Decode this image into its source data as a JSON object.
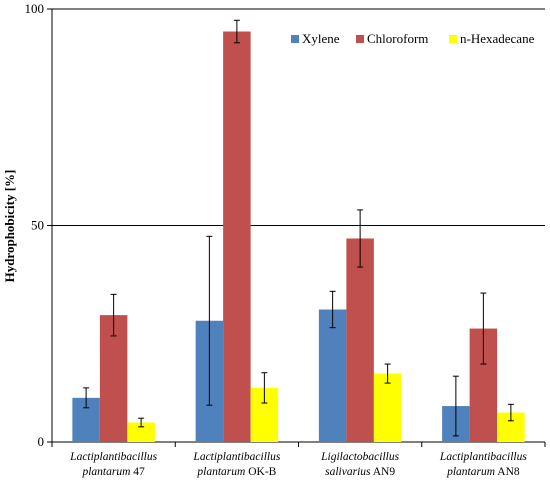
{
  "chart_data": {
    "type": "bar",
    "ylabel": "Hydrophobicity [%]",
    "xlabel": "",
    "ylim": [
      0,
      100
    ],
    "yticks": [
      0,
      50,
      100
    ],
    "grid": "horizontal lines at 50 and 100",
    "legend_position": "top-right",
    "categories": [
      {
        "line1": "Lactiplantibacillus",
        "line2_italic": "plantarum",
        "line2_plain": " 47"
      },
      {
        "line1": "Lactiplantibacillus",
        "line2_italic": "plantarum",
        "line2_plain": " OK-B"
      },
      {
        "line1": "Ligilactobacillus",
        "line2_italic": "salivarius",
        "line2_plain": " AN9"
      },
      {
        "line1": "Lactiplantibacillus",
        "line2_italic": "plantarum",
        "line2_plain": " AN8"
      }
    ],
    "series": [
      {
        "name": "Xylene",
        "color": "#4F81BD",
        "values": [
          10.2,
          28.0,
          30.6,
          8.3
        ],
        "errors": [
          2.3,
          19.5,
          4.2,
          6.9
        ]
      },
      {
        "name": "Chloroform",
        "color": "#C0504D",
        "values": [
          29.3,
          94.8,
          47.0,
          26.2
        ],
        "errors": [
          4.8,
          2.6,
          6.6,
          8.2
        ]
      },
      {
        "name": "n-Hexadecane",
        "color": "#FFFF00",
        "values": [
          4.5,
          12.5,
          15.8,
          6.8
        ],
        "errors": [
          1.0,
          3.5,
          2.2,
          1.9
        ]
      }
    ]
  }
}
